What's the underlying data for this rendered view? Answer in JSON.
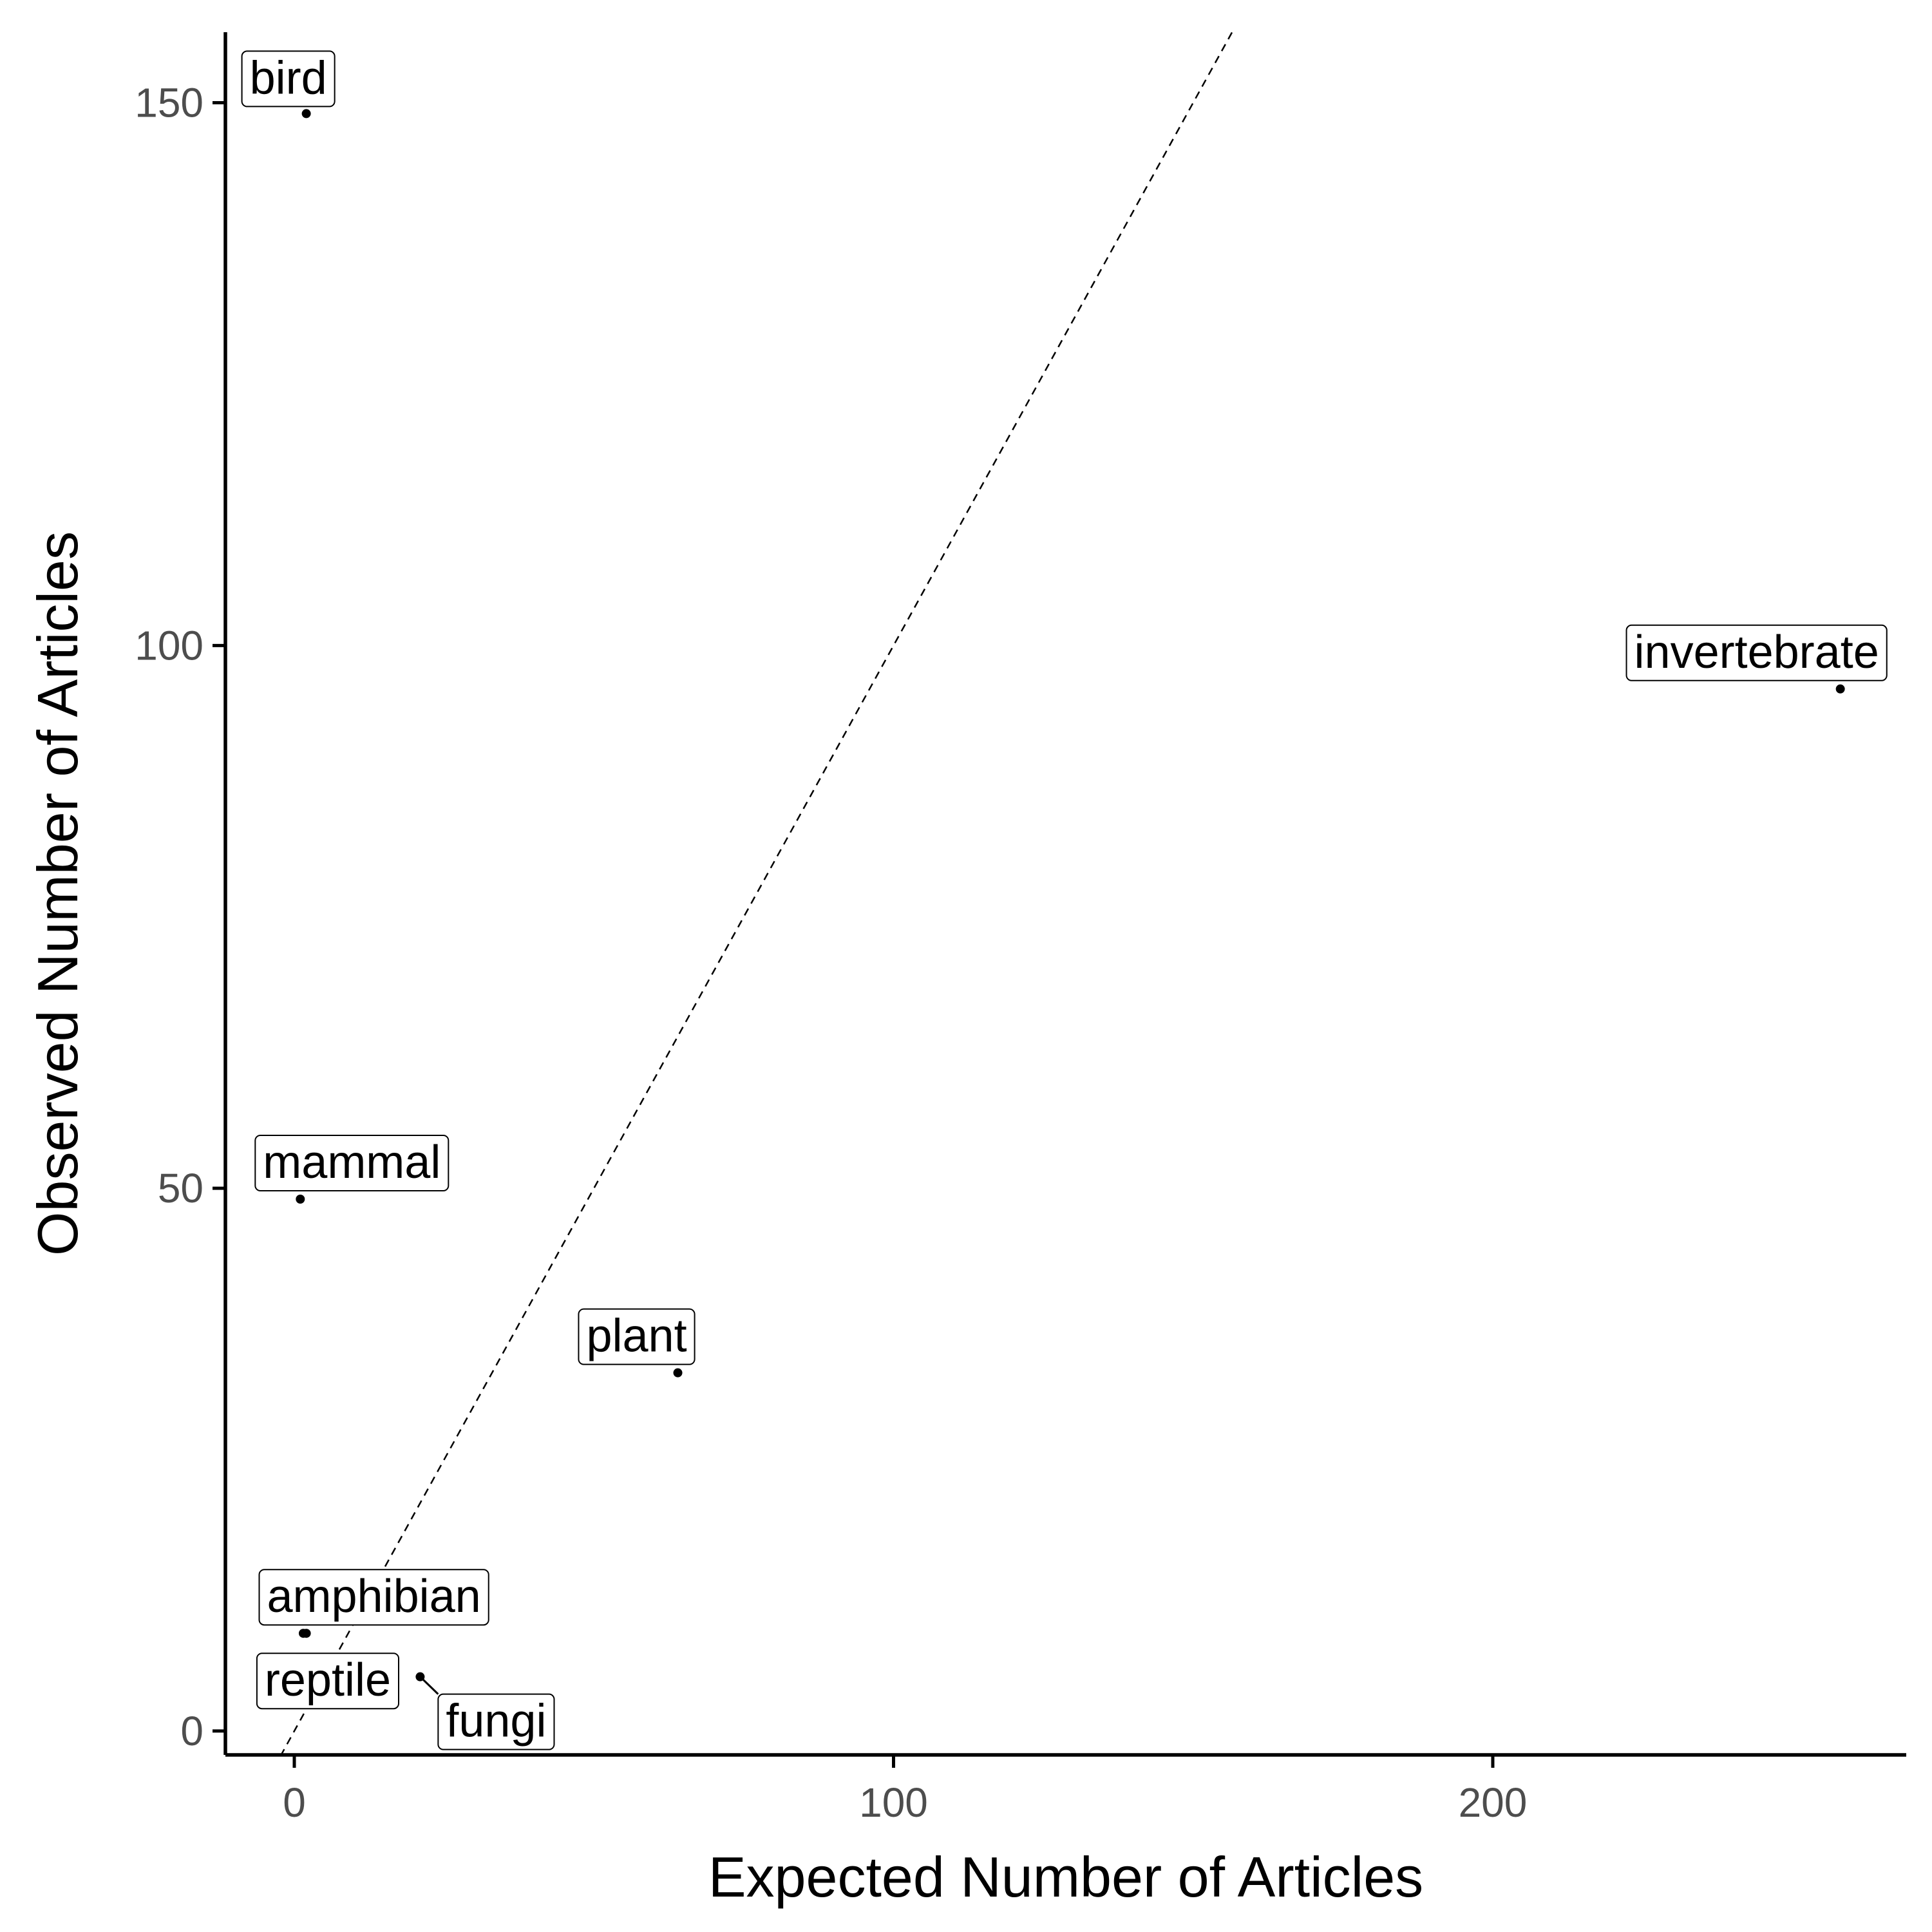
{
  "chart_data": {
    "type": "scatter",
    "xlabel": "Expected Number of Articles",
    "ylabel": "Observed Number of Articles",
    "xlim": [
      -11.5,
      269
    ],
    "ylim": [
      -2.2,
      156.5
    ],
    "xticks": [
      0,
      100,
      200
    ],
    "yticks": [
      0,
      50,
      100,
      150
    ],
    "reference_line": {
      "slope": 1,
      "intercept": 0,
      "style": "dashed"
    },
    "grid": false,
    "legend": "none",
    "points": [
      {
        "label": "bird",
        "x": 2,
        "y": 149
      },
      {
        "label": "invertebrate",
        "x": 258,
        "y": 96
      },
      {
        "label": "mammal",
        "x": 1,
        "y": 49
      },
      {
        "label": "plant",
        "x": 64,
        "y": 33
      },
      {
        "label": "amphibian",
        "x": 2,
        "y": 9
      },
      {
        "label": "reptile",
        "x": 1.5,
        "y": 9
      },
      {
        "label": "fungi",
        "x": 21,
        "y": 5
      }
    ]
  }
}
